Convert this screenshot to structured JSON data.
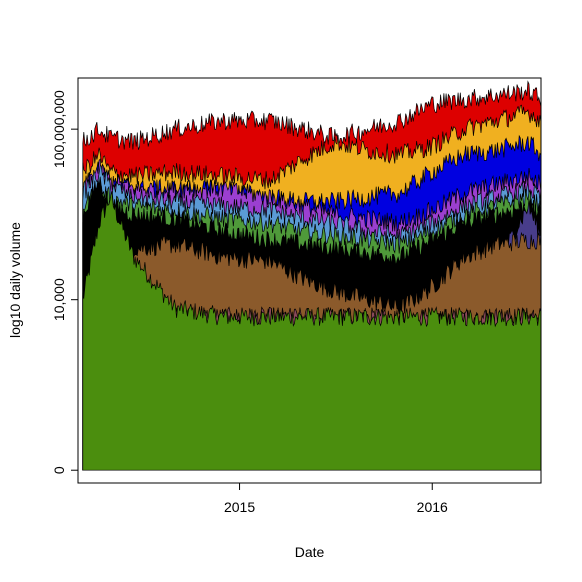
{
  "chart_data": {
    "type": "area",
    "stacked": true,
    "title": "",
    "xlabel": "Date",
    "ylabel": "log10 daily volume",
    "y_scale": "log10",
    "x_range": [
      "2014-03-01",
      "2016-07-25"
    ],
    "y_range_log10": [
      -0.3,
      9.2
    ],
    "x_ticks": [
      {
        "value": "2015-01-01",
        "label": "2015"
      },
      {
        "value": "2016-01-01",
        "label": "2016"
      }
    ],
    "y_ticks": [
      {
        "value_log10": 0,
        "label": "0"
      },
      {
        "value_log10": 4,
        "label": "10,000"
      },
      {
        "value_log10": 8,
        "label": "100,000,000"
      }
    ],
    "grid": false,
    "legend": "none",
    "approximate_top_log10_by_date": {
      "x": [
        "2014-03-10",
        "2014-04-10",
        "2014-05-01",
        "2014-06-15",
        "2014-09-01",
        "2014-12-01",
        "2015-03-01",
        "2015-05-01",
        "2015-07-01",
        "2015-09-01",
        "2015-11-01",
        "2016-01-01",
        "2016-03-01",
        "2016-05-01",
        "2016-07-01",
        "2016-07-25"
      ],
      "series": [
        {
          "color": "#4b8e0e",
          "values": [
            4.0,
            5.8,
            6.4,
            5.0,
            3.8,
            3.6,
            3.6,
            3.6,
            3.6,
            3.6,
            3.6,
            3.6,
            3.6,
            3.6,
            3.6,
            3.6
          ]
        },
        {
          "color": "#8b4a5a",
          "values": [
            4.0,
            4.2,
            4.0,
            3.8,
            3.6,
            3.6,
            3.6,
            3.6,
            3.6,
            3.6,
            3.6,
            3.6,
            3.6,
            3.6,
            3.6,
            3.6
          ]
        },
        {
          "color": "#8b5a2b",
          "values": [
            0.0,
            0.0,
            4.0,
            5.2,
            5.3,
            5.0,
            4.9,
            4.5,
            4.2,
            4.0,
            3.8,
            4.3,
            5.0,
            5.3,
            5.4,
            5.4
          ]
        },
        {
          "color": "#483d8b",
          "values": [
            0.0,
            0.0,
            0.0,
            0.0,
            0.0,
            0.0,
            0.0,
            3.6,
            3.4,
            3.2,
            3.0,
            3.4,
            4.2,
            4.8,
            6.2,
            5.5
          ]
        },
        {
          "color": "#000000",
          "values": [
            6.0,
            6.8,
            6.2,
            6.0,
            5.9,
            5.6,
            5.4,
            5.3,
            5.2,
            5.1,
            5.0,
            5.4,
            5.8,
            6.0,
            6.2,
            6.0
          ]
        },
        {
          "color": "#4f9a3a",
          "values": [
            6.2,
            6.6,
            6.4,
            6.2,
            6.1,
            5.9,
            5.8,
            5.6,
            5.5,
            5.4,
            5.3,
            5.6,
            6.0,
            6.2,
            6.4,
            6.2
          ]
        },
        {
          "color": "#5b9bd5",
          "values": [
            6.5,
            7.0,
            6.7,
            6.4,
            6.3,
            6.2,
            6.1,
            5.9,
            5.8,
            5.6,
            5.5,
            5.8,
            6.2,
            6.4,
            6.6,
            6.4
          ]
        },
        {
          "color": "#9b3fd0",
          "values": [
            6.6,
            7.1,
            6.8,
            6.6,
            6.6,
            6.6,
            6.4,
            6.2,
            6.0,
            5.9,
            5.8,
            6.1,
            6.5,
            6.7,
            6.9,
            6.7
          ]
        },
        {
          "color": "#0000e0",
          "values": [
            6.6,
            7.1,
            6.8,
            6.6,
            6.6,
            6.6,
            6.4,
            6.3,
            6.3,
            6.4,
            6.5,
            7.0,
            7.4,
            7.5,
            7.7,
            7.4
          ]
        },
        {
          "color": "#f0b020",
          "values": [
            7.0,
            7.4,
            7.0,
            6.9,
            7.0,
            6.9,
            6.8,
            7.3,
            7.7,
            7.5,
            7.4,
            7.6,
            8.0,
            8.2,
            8.4,
            8.2
          ]
        },
        {
          "color": "#dd0000",
          "values": [
            7.7,
            8.0,
            7.8,
            7.7,
            8.0,
            8.2,
            8.2,
            8.0,
            7.8,
            8.0,
            8.2,
            8.6,
            8.7,
            8.8,
            8.9,
            8.7
          ]
        }
      ]
    }
  }
}
